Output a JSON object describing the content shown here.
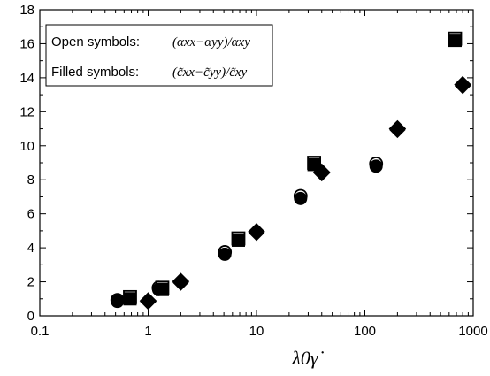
{
  "chart_data": {
    "type": "scatter",
    "x_scale": "log",
    "xlim": [
      0.1,
      1000
    ],
    "ylim": [
      0,
      18
    ],
    "x_ticks": [
      0.1,
      1,
      10,
      100,
      1000
    ],
    "x_tick_labels": [
      "0.1",
      "1",
      "10",
      "100",
      "1000"
    ],
    "y_ticks": [
      0,
      2,
      4,
      6,
      8,
      10,
      12,
      14,
      16,
      18
    ],
    "y_tick_labels": [
      "0",
      "2",
      "4",
      "6",
      "8",
      "10",
      "12",
      "14",
      "16",
      "18"
    ],
    "xlabel": "λ0γ̇",
    "legend": {
      "placement": "top-left",
      "open_text": "Open symbols:",
      "open_formula": "(αxx−αyy)/αxy",
      "filled_text": "Filled symbols:",
      "filled_formula": "(c̃xx−c̃yy)/c̃xy"
    },
    "series": [
      {
        "marker": "circle",
        "open": {
          "x": [
            0.52,
            1.25,
            5.1,
            25.5,
            127
          ],
          "y": [
            0.93,
            1.65,
            3.75,
            7.05,
            8.95
          ]
        },
        "filled": {
          "x": [
            0.52,
            1.25,
            5.1,
            25.5,
            127
          ],
          "y": [
            0.85,
            1.55,
            3.62,
            6.9,
            8.8
          ]
        }
      },
      {
        "marker": "square",
        "open": {
          "x": [
            0.68,
            1.35,
            6.8,
            34,
            680
          ],
          "y": [
            1.1,
            1.65,
            4.55,
            9.0,
            16.3
          ]
        },
        "filled": {
          "x": [
            0.68,
            1.35,
            6.8,
            34,
            680
          ],
          "y": [
            1.0,
            1.55,
            4.45,
            8.9,
            16.2
          ]
        }
      },
      {
        "marker": "diamond",
        "open": {
          "x": [
            1.0,
            2.0,
            10,
            40,
            200,
            800
          ],
          "y": [
            0.88,
            2.02,
            4.95,
            8.45,
            11.0,
            13.6
          ]
        },
        "filled": {
          "x": [
            1.0,
            2.0,
            10,
            40,
            200,
            800
          ],
          "y": [
            0.83,
            1.95,
            4.88,
            8.38,
            10.93,
            13.52
          ]
        }
      }
    ]
  }
}
